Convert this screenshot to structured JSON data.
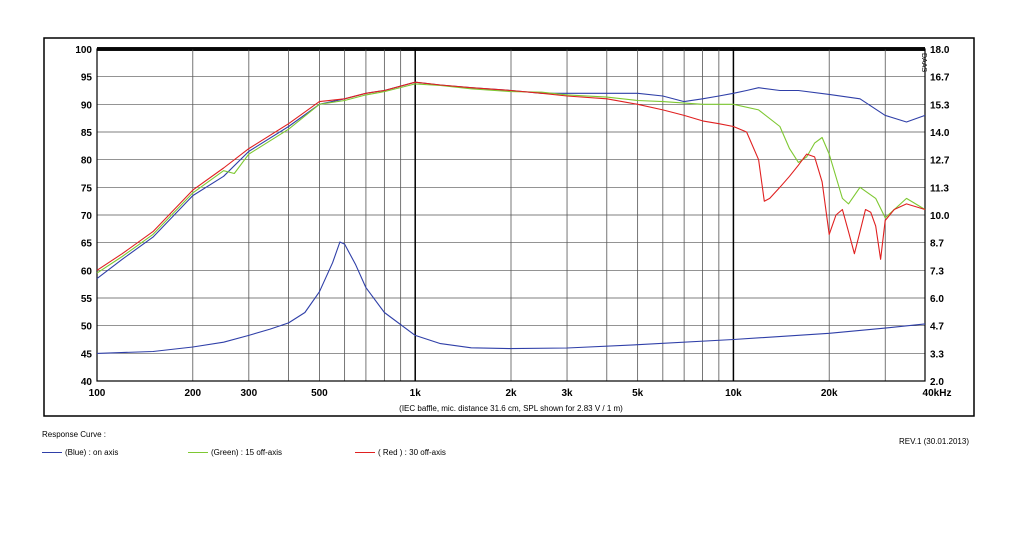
{
  "chart_data": {
    "type": "line",
    "title": "",
    "xlabel": "(IEC baffle, mic. distance 31.6 cm, SPL shown for 2.83 V / 1 m)",
    "x_scale": "log",
    "xlim": [
      100,
      40000
    ],
    "x_tick_labels": [
      {
        "value": 100,
        "label": "100"
      },
      {
        "value": 200,
        "label": "200"
      },
      {
        "value": 300,
        "label": "300"
      },
      {
        "value": 500,
        "label": "500"
      },
      {
        "value": 1000,
        "label": "1k"
      },
      {
        "value": 2000,
        "label": "2k"
      },
      {
        "value": 3000,
        "label": "3k"
      },
      {
        "value": 5000,
        "label": "5k"
      },
      {
        "value": 10000,
        "label": "10k"
      },
      {
        "value": 20000,
        "label": "20k"
      },
      {
        "value": 40000,
        "label": "40kHz"
      }
    ],
    "ylim_left": [
      40,
      100
    ],
    "y_left_ticks": [
      "100",
      "95",
      "90",
      "85",
      "80",
      "75",
      "70",
      "65",
      "60",
      "55",
      "50",
      "45",
      "40"
    ],
    "ylim_right": [
      2.0,
      18.0
    ],
    "y_right_ticks": [
      "18.0",
      "16.7",
      "15.3",
      "14.0",
      "12.7",
      "11.3",
      "10.0",
      "8.7",
      "7.3",
      "6.0",
      "4.7",
      "3.3",
      "2.0"
    ],
    "corner_label": "DAAS",
    "grid": true,
    "series": [
      {
        "name": "(Blue)  : on axis",
        "color": "#2f3fa8",
        "x": [
          100,
          120,
          150,
          200,
          250,
          300,
          400,
          500,
          600,
          700,
          800,
          1000,
          1200,
          1500,
          2000,
          2500,
          3000,
          4000,
          5000,
          6000,
          7000,
          8000,
          9000,
          10000,
          11000,
          12000,
          14000,
          16000,
          20000,
          25000,
          30000,
          35000,
          40000
        ],
        "y": [
          58.5,
          62,
          66,
          73.5,
          77,
          81.5,
          86,
          90,
          91,
          92,
          92.5,
          94,
          93.5,
          93,
          92.5,
          92,
          92,
          92,
          92,
          91.5,
          90.5,
          91,
          91.5,
          92,
          92.5,
          93,
          92.5,
          92.5,
          91.8,
          91,
          88,
          86.8,
          88
        ]
      },
      {
        "name": "(Green) : 15 off-axis",
        "color": "#7ec832",
        "x": [
          100,
          120,
          150,
          200,
          250,
          270,
          300,
          400,
          500,
          600,
          700,
          800,
          1000,
          1200,
          1500,
          2000,
          2500,
          3000,
          4000,
          5000,
          6000,
          8000,
          10000,
          12000,
          14000,
          15000,
          16000,
          17000,
          18000,
          19000,
          20000,
          22000,
          23000,
          25000,
          28000,
          30000,
          35000,
          40000
        ],
        "y": [
          59.5,
          62.5,
          66.5,
          74,
          78,
          77.5,
          81,
          85.5,
          90,
          90.7,
          91.7,
          92.3,
          93.7,
          93.4,
          92.8,
          92.3,
          92.2,
          91.7,
          91.3,
          90.7,
          90.5,
          90,
          90,
          89,
          86,
          82,
          79.5,
          80.5,
          83,
          84,
          81,
          73,
          72,
          75,
          73,
          69.5,
          73,
          71
        ]
      },
      {
        "name": "( Red ) : 30 off-axis",
        "color": "#e02020",
        "x": [
          100,
          120,
          150,
          200,
          250,
          300,
          400,
          500,
          600,
          700,
          800,
          1000,
          1200,
          1500,
          2000,
          2500,
          3000,
          4000,
          5000,
          6000,
          7000,
          8000,
          9000,
          10000,
          11000,
          12000,
          12500,
          13000,
          14000,
          15000,
          16000,
          17000,
          18000,
          19000,
          20000,
          21000,
          22000,
          23000,
          24000,
          25000,
          26000,
          27000,
          28000,
          29000,
          30000,
          32000,
          35000,
          40000
        ],
        "y": [
          60,
          63,
          67,
          74.5,
          78.5,
          82,
          86.5,
          90.5,
          91,
          92,
          92.5,
          94,
          93.5,
          93,
          92.5,
          92,
          91.5,
          91,
          90,
          89,
          88,
          87,
          86.5,
          86,
          85,
          80,
          72.5,
          73,
          75,
          77,
          79,
          81,
          80.5,
          76,
          66.5,
          70,
          71,
          67,
          63,
          67,
          71,
          70.5,
          68,
          62,
          69,
          71,
          72,
          71
        ]
      },
      {
        "name": "",
        "color": "#2f3fa8",
        "scale": "right",
        "x": [
          100,
          150,
          200,
          250,
          300,
          350,
          400,
          450,
          500,
          550,
          580,
          600,
          650,
          700,
          800,
          1000,
          1200,
          1500,
          2000,
          3000,
          5000,
          10000,
          20000,
          30000,
          40000
        ],
        "y": [
          3.33,
          3.42,
          3.64,
          3.87,
          4.2,
          4.5,
          4.8,
          5.3,
          6.3,
          7.7,
          8.7,
          8.6,
          7.6,
          6.5,
          5.3,
          4.2,
          3.8,
          3.6,
          3.56,
          3.59,
          3.75,
          4.0,
          4.3,
          4.55,
          4.75
        ]
      }
    ]
  },
  "legend": {
    "title": "Response Curve :",
    "items": [
      {
        "label": "(Blue)  : on axis",
        "color": "#2f3fa8"
      },
      {
        "label": "(Green) : 15 off-axis",
        "color": "#7ec832"
      },
      {
        "label": "( Red ) : 30 off-axis",
        "color": "#e02020"
      }
    ]
  },
  "revision": "REV.1 (30.01.2013)"
}
